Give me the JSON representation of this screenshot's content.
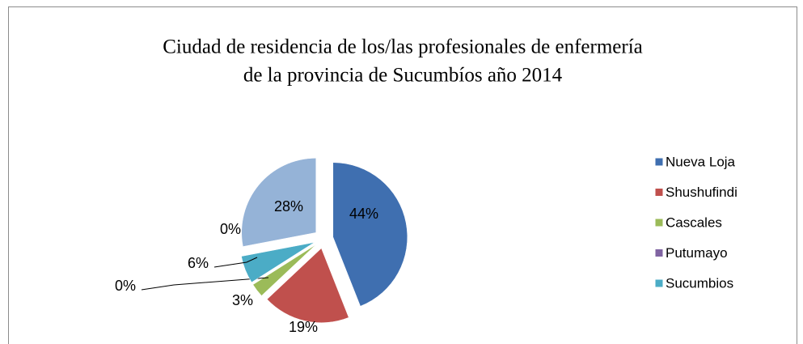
{
  "chart_data": {
    "type": "pie",
    "title": [
      "Ciudad de residencia de los/las profesionales de enfermería",
      "de la provincia de  Sucumbíos  año 2014"
    ],
    "categories": [
      "Nueva Loja",
      "Shushufindi",
      "Cascales",
      "Putumayo",
      "Sucumbios",
      null,
      null
    ],
    "values": [
      44,
      19,
      3,
      0,
      6,
      0,
      28
    ],
    "value_labels": [
      "44%",
      "19%",
      "3%",
      "0%",
      "6%",
      "0%",
      "28%"
    ],
    "colors": [
      "#3f6fb0",
      "#c0504d",
      "#9bbb59",
      "#8064a2",
      "#4bacc6",
      "#f79646",
      "#95b3d7"
    ],
    "legend": "right"
  }
}
